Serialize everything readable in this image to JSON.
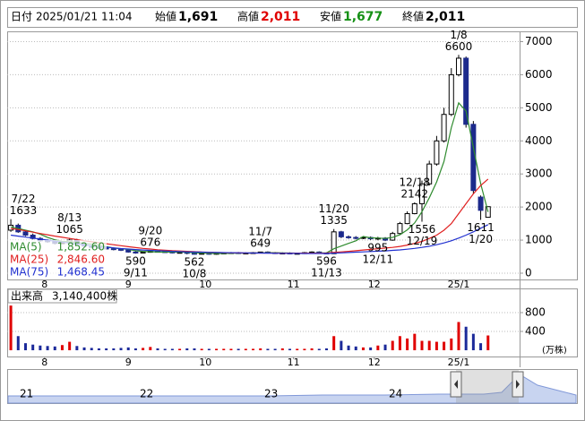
{
  "header": {
    "date_label": "日付",
    "date": "2025/01/21 11:04",
    "open_label": "始値",
    "open": "1,691",
    "high_label": "高値",
    "high": "2,011",
    "low_label": "安値",
    "low": "1,677",
    "close_label": "終値",
    "close": "2,011"
  },
  "chart_data": [
    {
      "type": "candlestick",
      "open": [
        1300,
        1450,
        1250,
        1150,
        1050,
        980,
        950,
        900,
        920,
        1000,
        880,
        820,
        780,
        760,
        740,
        720,
        700,
        640,
        610,
        640,
        660,
        650,
        640,
        620,
        630,
        600,
        590,
        600,
        580,
        600,
        610,
        620,
        600,
        610,
        620,
        640,
        620,
        600,
        610,
        590,
        600,
        620,
        640,
        610,
        590,
        1250,
        1100,
        1080,
        1060,
        1080,
        1040,
        1060,
        1000,
        1200,
        1500,
        1800,
        2100,
        2700,
        3300,
        4000,
        4800,
        6000,
        6500,
        4500,
        2300,
        1691
      ],
      "high": [
        1633,
        1500,
        1300,
        1200,
        1090,
        1020,
        990,
        960,
        1065,
        1040,
        910,
        850,
        810,
        790,
        770,
        750,
        730,
        660,
        660,
        676,
        680,
        670,
        660,
        650,
        650,
        620,
        620,
        620,
        620,
        630,
        640,
        640,
        630,
        640,
        649,
        660,
        640,
        630,
        630,
        620,
        640,
        660,
        660,
        630,
        1335,
        1280,
        1140,
        1120,
        1120,
        1110,
        1100,
        1090,
        1250,
        1550,
        1870,
        2142,
        2800,
        3400,
        4150,
        5000,
        6200,
        6600,
        6550,
        4600,
        2350,
        2011
      ],
      "low": [
        1250,
        1220,
        1120,
        1020,
        950,
        920,
        870,
        880,
        900,
        850,
        790,
        750,
        730,
        710,
        690,
        670,
        620,
        590,
        600,
        620,
        630,
        620,
        600,
        600,
        570,
        562,
        570,
        560,
        560,
        580,
        590,
        580,
        580,
        590,
        600,
        600,
        580,
        580,
        570,
        570,
        580,
        600,
        590,
        596,
        585,
        1060,
        1040,
        1020,
        1030,
        1000,
        995,
        970,
        980,
        1180,
        1480,
        1780,
        1556,
        2650,
        3250,
        3950,
        4750,
        5950,
        4400,
        2400,
        1611,
        1677
      ],
      "close": [
        1450,
        1250,
        1150,
        1050,
        980,
        950,
        900,
        920,
        1000,
        880,
        820,
        780,
        760,
        740,
        720,
        700,
        640,
        610,
        640,
        660,
        650,
        640,
        620,
        630,
        600,
        590,
        600,
        580,
        600,
        610,
        620,
        600,
        610,
        620,
        640,
        620,
        600,
        610,
        590,
        600,
        620,
        640,
        610,
        590,
        1250,
        1100,
        1080,
        1060,
        1080,
        1040,
        1060,
        1000,
        1200,
        1500,
        1800,
        2100,
        2700,
        3300,
        4000,
        4800,
        6000,
        6500,
        4500,
        2500,
        1900,
        2011
      ],
      "up_color": "#ffffff",
      "down_color": "#1c2a8c",
      "xlim": [
        -0.5,
        69.3
      ],
      "xticks": [
        {
          "value": 4.6,
          "label": "8"
        },
        {
          "value": 16,
          "label": "9"
        },
        {
          "value": 26.5,
          "label": "10"
        },
        {
          "value": 38.5,
          "label": "11"
        },
        {
          "value": 49.5,
          "label": "12"
        },
        {
          "value": 61,
          "label": "25/1"
        }
      ],
      "ylim": [
        -190,
        7230
      ],
      "yticks": [
        0,
        1000,
        2000,
        3000,
        4000,
        5000,
        6000,
        7000
      ],
      "grid": true,
      "series": [
        {
          "name": "MA(5)",
          "color": "#2e8b2e",
          "latest": {
            "value": 1852.6,
            "label": "1,852.60"
          },
          "values": [
            1400,
            1350,
            1300,
            1250,
            1180,
            1080,
            1010,
            960,
            950,
            930,
            900,
            880,
            850,
            800,
            760,
            740,
            720,
            680,
            660,
            650,
            640,
            640,
            640,
            640,
            630,
            620,
            610,
            600,
            595,
            595,
            600,
            605,
            610,
            610,
            615,
            620,
            620,
            615,
            610,
            605,
            605,
            610,
            615,
            615,
            740,
            820,
            900,
            980,
            1110,
            1070,
            1060,
            1050,
            1080,
            1160,
            1310,
            1520,
            1860,
            2280,
            2760,
            3380,
            4400,
            5150,
            4900,
            3800,
            2700,
            1853
          ]
        },
        {
          "name": "MA(25)",
          "color": "#e02020",
          "latest": {
            "value": 2846.6,
            "label": "2,846.60"
          },
          "values": [
            1350,
            1320,
            1280,
            1240,
            1200,
            1160,
            1120,
            1085,
            1050,
            1015,
            980,
            950,
            920,
            890,
            860,
            830,
            800,
            775,
            750,
            730,
            710,
            695,
            680,
            670,
            660,
            650,
            640,
            632,
            625,
            620,
            615,
            612,
            610,
            610,
            610,
            609,
            608,
            606,
            605,
            605,
            605,
            605,
            605,
            610,
            630,
            645,
            660,
            680,
            700,
            720,
            740,
            760,
            780,
            810,
            850,
            900,
            960,
            1050,
            1150,
            1300,
            1500,
            1800,
            2100,
            2400,
            2650,
            2847
          ]
        },
        {
          "name": "MA(75)",
          "color": "#2030d0",
          "latest": {
            "value": 1468.45,
            "label": "1,468.45"
          },
          "values": [
            1150,
            1120,
            1090,
            1060,
            1030,
            1000,
            970,
            940,
            910,
            880,
            855,
            830,
            805,
            785,
            765,
            745,
            730,
            715,
            700,
            690,
            680,
            670,
            660,
            652,
            645,
            640,
            635,
            630,
            626,
            622,
            619,
            616,
            613,
            610,
            608,
            606,
            604,
            602,
            600,
            598,
            596,
            595,
            595,
            596,
            605,
            615,
            625,
            635,
            645,
            655,
            665,
            675,
            690,
            705,
            725,
            750,
            780,
            815,
            860,
            915,
            980,
            1060,
            1150,
            1250,
            1360,
            1468
          ]
        }
      ],
      "annotations": [
        {
          "date": "7/22",
          "price": 1633,
          "at": "high"
        },
        {
          "date": "8/13",
          "price": 1065,
          "at": "high"
        },
        {
          "date": "9/11",
          "price": 590,
          "at": "low"
        },
        {
          "date": "9/20",
          "price": 676,
          "at": "high"
        },
        {
          "date": "10/8",
          "price": 562,
          "at": "low"
        },
        {
          "date": "11/7",
          "price": 649,
          "at": "high"
        },
        {
          "date": "11/13",
          "price": 596,
          "at": "low"
        },
        {
          "date": "11/20",
          "price": 1335,
          "at": "high"
        },
        {
          "date": "12/11",
          "price": 995,
          "at": "low"
        },
        {
          "date": "12/18",
          "price": 2142,
          "at": "high"
        },
        {
          "date": "12/19",
          "price": 1556,
          "at": "low"
        },
        {
          "date": "1/8",
          "price": 6600,
          "at": "high"
        },
        {
          "date": "1/20",
          "price": 1611,
          "at": "low"
        }
      ]
    },
    {
      "type": "bar",
      "title": "出来高",
      "latest": "3,140,400株",
      "unit": "(万株)",
      "values": [
        950,
        300,
        150,
        120,
        100,
        90,
        80,
        110,
        180,
        90,
        60,
        50,
        40,
        40,
        40,
        50,
        60,
        40,
        50,
        70,
        40,
        30,
        30,
        30,
        40,
        40,
        30,
        30,
        30,
        30,
        30,
        30,
        30,
        30,
        40,
        30,
        30,
        40,
        30,
        30,
        30,
        40,
        30,
        40,
        300,
        200,
        100,
        80,
        60,
        60,
        100,
        120,
        200,
        300,
        250,
        350,
        200,
        200,
        180,
        180,
        250,
        600,
        500,
        350,
        150,
        314
      ],
      "up_color": "#e00000",
      "down_color": "#1c2a9a",
      "xlim": [
        -0.5,
        69.3
      ],
      "xticks": [
        {
          "value": 4.6,
          "label": "8"
        },
        {
          "value": 16,
          "label": "9"
        },
        {
          "value": 26.5,
          "label": "10"
        },
        {
          "value": 38.5,
          "label": "11"
        },
        {
          "value": 49.5,
          "label": "12"
        },
        {
          "value": 61,
          "label": "25/1"
        }
      ],
      "ylim": [
        -133,
        1314
      ],
      "yticks": [
        400,
        800
      ],
      "grid": true
    }
  ],
  "navigator": {
    "labels": [
      "21",
      "22",
      "23",
      "24"
    ]
  }
}
